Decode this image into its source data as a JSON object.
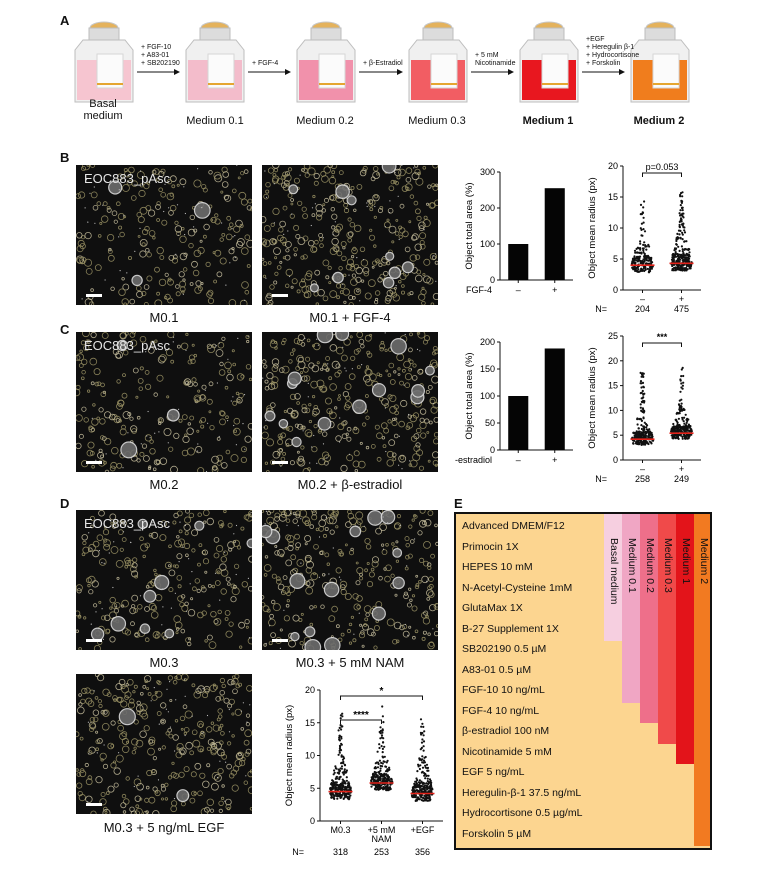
{
  "panel_labels": {
    "a": "A",
    "b": "B",
    "c": "C",
    "d": "D",
    "e": "E"
  },
  "panel_a": {
    "steps": [
      {
        "name_line1": "Basal",
        "name_line2": "medium",
        "bold": false,
        "liquid": "#f6c5d0"
      },
      {
        "name_line1": "Medium 0.1",
        "name_line2": "",
        "bold": false,
        "liquid": "#f3bccb"
      },
      {
        "name_line1": "Medium 0.2",
        "name_line2": "",
        "bold": false,
        "liquid": "#f191ab"
      },
      {
        "name_line1": "Medium 0.3",
        "name_line2": "",
        "bold": false,
        "liquid": "#f25d63"
      },
      {
        "name_line1": "Medium 1",
        "name_line2": "",
        "bold": true,
        "liquid": "#e8171f"
      },
      {
        "name_line1": "Medium 2",
        "name_line2": "",
        "bold": true,
        "liquid": "#f07d1d"
      }
    ],
    "arrows": [
      {
        "lines": [
          "+ FGF-10",
          "+ A83-01",
          "+ SB202190"
        ]
      },
      {
        "lines": [
          "+ FGF-4"
        ]
      },
      {
        "lines": [
          "+ β-Estradiol"
        ]
      },
      {
        "lines": [
          "+ 5 mM",
          "Nicotinamide"
        ]
      },
      {
        "lines": [
          "+EGF",
          "+ Heregulin β-1",
          "+ Hydrocortisone",
          "+ Forskolin"
        ]
      }
    ]
  },
  "micrographs": {
    "sample_label": "EOC883_pAsc",
    "captions": {
      "b1": "M0.1",
      "b2": "M0.1 + FGF-4",
      "c1": "M0.2",
      "c2": "M0.2 + β-estradiol",
      "d1": "M0.3",
      "d2": "M0.3 + 5 mM NAM",
      "d3": "M0.3 + 5 ng/mL EGF"
    }
  },
  "chart_data": [
    {
      "id": "B-area",
      "type": "bar",
      "ylabel": "Object total area (%)",
      "ylim": [
        0,
        300
      ],
      "yticks": [
        0,
        100,
        200,
        300
      ],
      "group_label": "FGF-4",
      "categories": [
        "–",
        "+"
      ],
      "values": [
        100,
        255
      ]
    },
    {
      "id": "B-radius",
      "type": "scatter",
      "ylabel": "Object mean radius (px)",
      "ylim": [
        0,
        20
      ],
      "yticks": [
        0,
        5,
        10,
        15,
        20
      ],
      "categories": [
        "–",
        "+"
      ],
      "medians": [
        4.0,
        4.3
      ],
      "n_label": "N=",
      "n": [
        "204",
        "475"
      ],
      "annotation": "p=0.053"
    },
    {
      "id": "C-area",
      "type": "bar",
      "ylabel": "Object total area (%)",
      "ylim": [
        0,
        200
      ],
      "yticks": [
        0,
        50,
        100,
        150,
        200
      ],
      "group_label": "β-estradiol",
      "categories": [
        "–",
        "+"
      ],
      "values": [
        100,
        188
      ]
    },
    {
      "id": "C-radius",
      "type": "scatter",
      "ylabel": "Object mean radius (px)",
      "ylim": [
        0,
        25
      ],
      "yticks": [
        0,
        5,
        10,
        15,
        20,
        25
      ],
      "categories": [
        "–",
        "+"
      ],
      "medians": [
        4.2,
        5.4
      ],
      "n_label": "N=",
      "n": [
        "258",
        "249"
      ],
      "annotation": "***"
    },
    {
      "id": "D-radius",
      "type": "scatter",
      "ylabel": "Object mean radius (px)",
      "ylim": [
        0,
        20
      ],
      "yticks": [
        0,
        5,
        10,
        15,
        20
      ],
      "categories": [
        "M0.3",
        "+5 mM",
        "+EGF"
      ],
      "category_sub": [
        "",
        "NAM",
        ""
      ],
      "medians": [
        4.5,
        5.8,
        4.2
      ],
      "n_label": "N=",
      "n": [
        "318",
        "253",
        "356"
      ],
      "annotations": [
        "****",
        "*"
      ]
    }
  ],
  "panel_e": {
    "ingredients": [
      "Advanced DMEM/F12",
      "Primocin 1X",
      "HEPES 10 mM",
      "N-Acetyl-Cysteine 1mM",
      "GlutaMax 1X",
      "B-27 Supplement 1X",
      "SB202190 0.5 µM",
      "A83-01 0.5 µM",
      "FGF-10 10 ng/mL",
      "FGF-4 10 ng/mL",
      "β-estradiol 100 nM",
      "Nicotinamide 5 mM",
      "EGF 5 ng/mL",
      "Heregulin-β-1 37.5 ng/mL",
      "Hydrocortisone 0.5 µg/mL",
      "Forskolin 5 µM"
    ],
    "media": [
      {
        "name": "Basal medium",
        "color": "#f6cfe0",
        "last_row": 5
      },
      {
        "name": "Medium 0.1",
        "color": "#f0a6c4",
        "last_row": 8
      },
      {
        "name": "Medium 0.2",
        "color": "#ee6f8a",
        "last_row": 9
      },
      {
        "name": "Medium 0.3",
        "color": "#f04a4a",
        "last_row": 10
      },
      {
        "name": "Medium 1",
        "color": "#e3141a",
        "last_row": 11
      },
      {
        "name": "Medium 2",
        "color": "#f27a21",
        "last_row": 15
      }
    ]
  }
}
